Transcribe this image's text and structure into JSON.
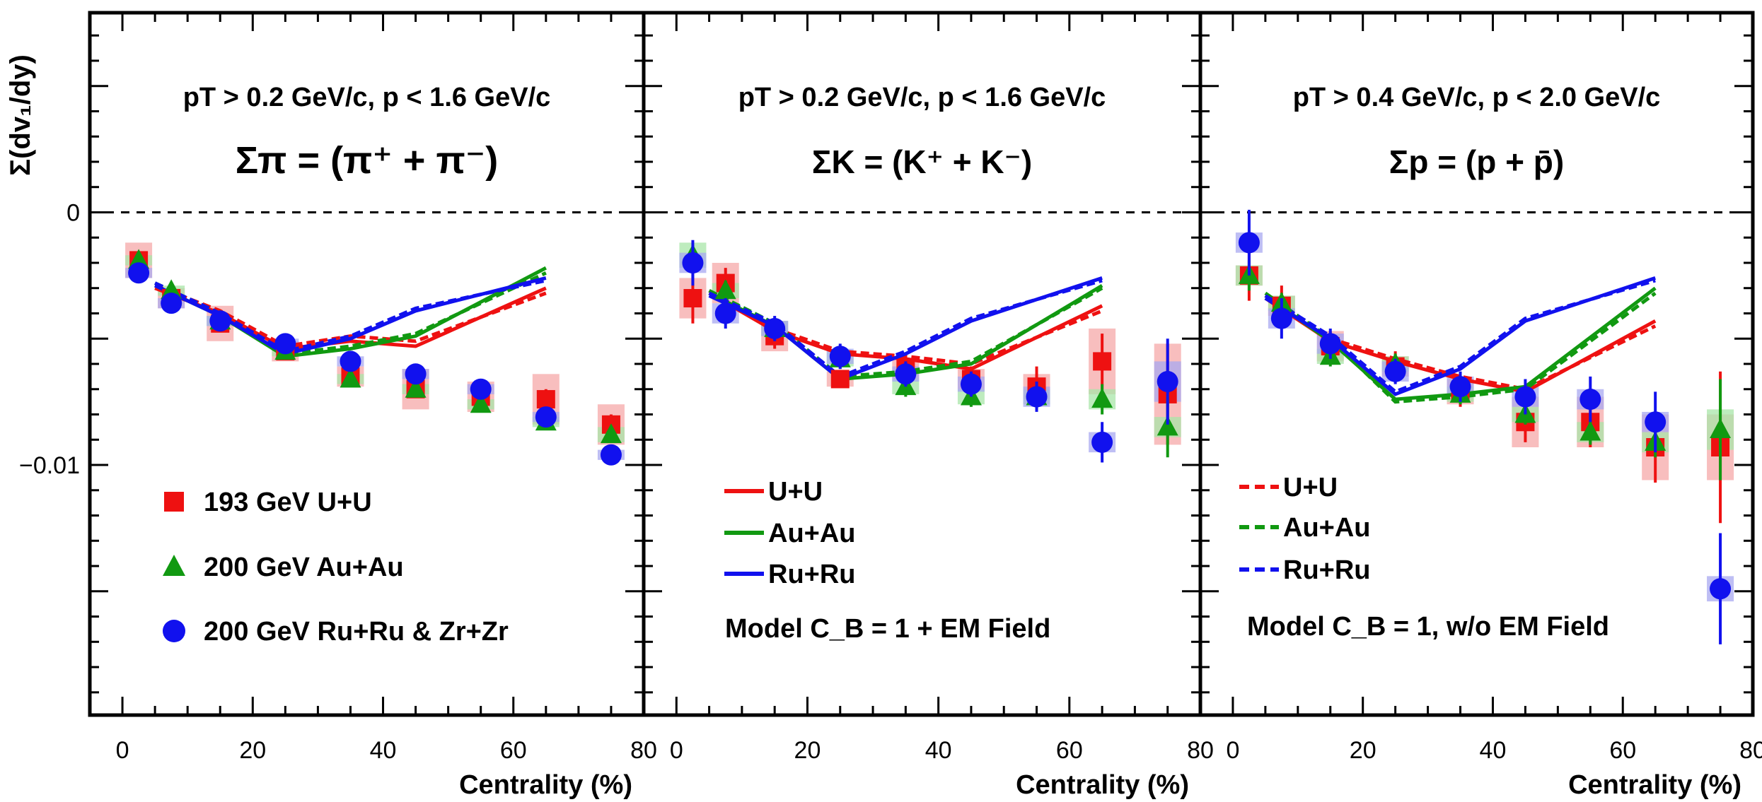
{
  "y_axis_label": "Σ(dv₁/dy)",
  "x_axis_label": "Centrality (%)",
  "colors": {
    "uu": "#ee1111",
    "auau": "#119911",
    "ruru": "#1111ee",
    "uu_band": "#f6a8a8",
    "auau_band": "#a8e6a8",
    "ruru_band": "#a8a8f0"
  },
  "chart_data": [
    {
      "type": "scatter",
      "cut": "pT > 0.2 GeV/c, p < 1.6 GeV/c",
      "species": "Σπ = (π⁺ + π⁻)",
      "xlim": [
        -5,
        80
      ],
      "ylim": [
        -0.0199,
        0.0079
      ],
      "y_ticks": [
        {
          "v": 0,
          "label": "0"
        },
        {
          "v": -0.01,
          "label": "−0.01"
        }
      ],
      "x_ticks": [
        0,
        20,
        40,
        60,
        80
      ],
      "legend": {
        "placement": "bottom-left",
        "items": [
          {
            "label": "193 GeV U+U",
            "marker": "square",
            "color": "#ee1111"
          },
          {
            "label": "200 GeV Au+Au",
            "marker": "triangle",
            "color": "#119911"
          },
          {
            "label": "200 GeV Ru+Ru & Zr+Zr",
            "marker": "circle",
            "color": "#1111ee"
          }
        ]
      },
      "series": [
        {
          "name": "193 GeV U+U",
          "marker": "square",
          "color": "#ee1111",
          "x": [
            2.5,
            7.5,
            15,
            25,
            35,
            45,
            55,
            65,
            75
          ],
          "y": [
            -0.0019,
            -0.0034,
            -0.0044,
            -0.0055,
            -0.0065,
            -0.007,
            -0.0073,
            -0.0074,
            -0.0084
          ],
          "err": [
            0.0003,
            0.0003,
            0.0003,
            0.0003,
            0.0003,
            0.0003,
            0.0003,
            0.0004,
            0.0004
          ],
          "sys": [
            0.0007,
            0.0004,
            0.0007,
            0.0004,
            0.0004,
            0.0008,
            0.0006,
            0.001,
            0.0008
          ]
        },
        {
          "name": "200 GeV Au+Au",
          "marker": "triangle",
          "color": "#119911",
          "x": [
            2.5,
            7.5,
            15,
            25,
            35,
            45,
            55,
            65,
            75
          ],
          "y": [
            -0.0019,
            -0.0031,
            -0.0043,
            -0.0055,
            -0.0066,
            -0.007,
            -0.0076,
            -0.0083,
            -0.0088
          ],
          "err": [
            0.0002,
            0.0002,
            0.0002,
            0.0002,
            0.0002,
            0.0002,
            0.0002,
            0.0002,
            0.0003
          ],
          "sys": [
            0.0002,
            0.0002,
            0.0002,
            0.0002,
            0.0002,
            0.0002,
            0.0002,
            0.0002,
            0.0003
          ]
        },
        {
          "name": "200 GeV Ru+Ru & Zr+Zr",
          "marker": "circle",
          "color": "#1111ee",
          "x": [
            2.5,
            7.5,
            15,
            25,
            35,
            45,
            55,
            65,
            75
          ],
          "y": [
            -0.0024,
            -0.0036,
            -0.0043,
            -0.0052,
            -0.0059,
            -0.0064,
            -0.007,
            -0.0081,
            -0.0096
          ],
          "err": [
            0.0002,
            0.0002,
            0.0002,
            0.0002,
            0.0002,
            0.0002,
            0.0002,
            0.0002,
            0.0002
          ],
          "sys": [
            0.0002,
            0.0002,
            0.0002,
            0.0002,
            0.0002,
            0.0002,
            0.0002,
            0.0002,
            0.0002
          ]
        }
      ],
      "model_lines": [
        {
          "system": "U+U",
          "style": "solid",
          "color": "#ee1111",
          "x": [
            5,
            15,
            25,
            35,
            45,
            65
          ],
          "y": [
            -0.003,
            -0.004,
            -0.0054,
            -0.0051,
            -0.0053,
            -0.003
          ]
        },
        {
          "system": "U+U",
          "style": "dashed",
          "color": "#ee1111",
          "x": [
            5,
            15,
            25,
            35,
            45,
            65
          ],
          "y": [
            -0.0029,
            -0.0039,
            -0.0053,
            -0.0049,
            -0.0051,
            -0.0032
          ]
        },
        {
          "system": "Au+Au",
          "style": "solid",
          "color": "#119911",
          "x": [
            5,
            15,
            25,
            35,
            45,
            65
          ],
          "y": [
            -0.0029,
            -0.0041,
            -0.0057,
            -0.0054,
            -0.0049,
            -0.0022
          ]
        },
        {
          "system": "Au+Au",
          "style": "dashed",
          "color": "#119911",
          "x": [
            5,
            15,
            25,
            35,
            45,
            65
          ],
          "y": [
            -0.0028,
            -0.004,
            -0.0056,
            -0.0053,
            -0.0048,
            -0.0024
          ]
        },
        {
          "system": "Ru+Ru",
          "style": "solid",
          "color": "#1111ee",
          "x": [
            5,
            15,
            25,
            35,
            45,
            65
          ],
          "y": [
            -0.0029,
            -0.0041,
            -0.0056,
            -0.005,
            -0.0039,
            -0.0026
          ]
        },
        {
          "system": "Ru+Ru",
          "style": "dashed",
          "color": "#1111ee",
          "x": [
            5,
            15,
            25,
            35,
            45,
            65
          ],
          "y": [
            -0.0028,
            -0.004,
            -0.0055,
            -0.0049,
            -0.0038,
            -0.0027
          ]
        }
      ]
    },
    {
      "type": "scatter",
      "cut": "pT > 0.2 GeV/c, p < 1.6 GeV/c",
      "species": "ΣK = (K⁺ + K⁻)",
      "xlim": [
        -5,
        80
      ],
      "ylim": [
        -0.0199,
        0.0079
      ],
      "x_ticks": [
        0,
        20,
        40,
        60,
        80
      ],
      "legend": {
        "placement": "bottom-left",
        "items": [
          {
            "label": "U+U",
            "style": "solid",
            "color": "#ee1111"
          },
          {
            "label": "Au+Au",
            "style": "solid",
            "color": "#119911"
          },
          {
            "label": "Ru+Ru",
            "style": "solid",
            "color": "#1111ee"
          }
        ],
        "note": "Model C_B = 1 + EM Field"
      },
      "series": [
        {
          "name": "193 GeV U+U",
          "marker": "square",
          "color": "#ee1111",
          "x": [
            2.5,
            7.5,
            15,
            25,
            35,
            45,
            55,
            65,
            75
          ],
          "y": [
            -0.0034,
            -0.0028,
            -0.0049,
            -0.0066,
            -0.0062,
            -0.0066,
            -0.0069,
            -0.0059,
            -0.0072
          ],
          "err": [
            0.001,
            0.0006,
            0.0005,
            0.0003,
            0.0005,
            0.0005,
            0.0008,
            0.0011,
            0.002
          ],
          "sys": [
            0.0008,
            0.0008,
            0.0006,
            0.0003,
            0.0004,
            0.0004,
            0.0005,
            0.0013,
            0.002
          ]
        },
        {
          "name": "200 GeV Au+Au",
          "marker": "triangle",
          "color": "#119911",
          "x": [
            2.5,
            7.5,
            15,
            25,
            35,
            45,
            55,
            65,
            75
          ],
          "y": [
            -0.0017,
            -0.0031,
            -0.0046,
            -0.0058,
            -0.0069,
            -0.0073,
            -0.0073,
            -0.0074,
            -0.0085
          ],
          "err": [
            0.0004,
            0.0004,
            0.0004,
            0.0004,
            0.0004,
            0.0004,
            0.0005,
            0.0006,
            0.0012
          ],
          "sys": [
            0.0005,
            0.0003,
            0.0003,
            0.0003,
            0.0003,
            0.0003,
            0.0003,
            0.0004,
            0.0004
          ]
        },
        {
          "name": "200 GeV Ru+Ru & Zr+Zr",
          "marker": "circle",
          "color": "#1111ee",
          "x": [
            2.5,
            7.5,
            15,
            25,
            35,
            45,
            55,
            65,
            75
          ],
          "y": [
            -0.002,
            -0.004,
            -0.0046,
            -0.0057,
            -0.0064,
            -0.0068,
            -0.0073,
            -0.0091,
            -0.0067
          ],
          "err": [
            0.0009,
            0.0006,
            0.0005,
            0.0005,
            0.0005,
            0.0005,
            0.0006,
            0.0008,
            0.0017
          ],
          "sys": [
            0.0004,
            0.0004,
            0.0003,
            0.0003,
            0.0003,
            0.0003,
            0.0004,
            0.0004,
            0.0008
          ]
        }
      ],
      "model_lines": [
        {
          "system": "U+U",
          "style": "solid",
          "color": "#ee1111",
          "x": [
            5,
            15,
            25,
            35,
            45,
            65
          ],
          "y": [
            -0.0032,
            -0.0047,
            -0.0056,
            -0.0058,
            -0.0062,
            -0.0037
          ]
        },
        {
          "system": "U+U",
          "style": "dashed",
          "color": "#ee1111",
          "x": [
            5,
            15,
            25,
            35,
            45,
            65
          ],
          "y": [
            -0.0031,
            -0.0046,
            -0.0055,
            -0.0057,
            -0.006,
            -0.0039
          ]
        },
        {
          "system": "Au+Au",
          "style": "solid",
          "color": "#119911",
          "x": [
            5,
            15,
            25,
            35,
            45,
            65
          ],
          "y": [
            -0.0032,
            -0.0045,
            -0.0066,
            -0.0064,
            -0.006,
            -0.0029
          ]
        },
        {
          "system": "Au+Au",
          "style": "dashed",
          "color": "#119911",
          "x": [
            5,
            15,
            25,
            35,
            45,
            65
          ],
          "y": [
            -0.0031,
            -0.0044,
            -0.0065,
            -0.0063,
            -0.0059,
            -0.003
          ]
        },
        {
          "system": "Ru+Ru",
          "style": "solid",
          "color": "#1111ee",
          "x": [
            5,
            15,
            25,
            35,
            45,
            65
          ],
          "y": [
            -0.0033,
            -0.0045,
            -0.0066,
            -0.0056,
            -0.0043,
            -0.0026
          ]
        },
        {
          "system": "Ru+Ru",
          "style": "dashed",
          "color": "#1111ee",
          "x": [
            5,
            15,
            25,
            35,
            45,
            65
          ],
          "y": [
            -0.0032,
            -0.0044,
            -0.0065,
            -0.0055,
            -0.0042,
            -0.0027
          ]
        }
      ]
    },
    {
      "type": "scatter",
      "cut": "pT > 0.4 GeV/c, p < 2.0 GeV/c",
      "species": "Σp = (p + p̄)",
      "xlim": [
        -5,
        80
      ],
      "ylim": [
        -0.0199,
        0.0079
      ],
      "x_ticks": [
        0,
        20,
        40,
        60,
        80
      ],
      "legend": {
        "placement": "bottom-left",
        "items": [
          {
            "label": "U+U",
            "style": "dashed",
            "color": "#ee1111"
          },
          {
            "label": "Au+Au",
            "style": "dashed",
            "color": "#119911"
          },
          {
            "label": "Ru+Ru",
            "style": "dashed",
            "color": "#1111ee"
          }
        ],
        "note": "Model C_B = 1, w/o EM Field"
      },
      "series": [
        {
          "name": "193 GeV U+U",
          "marker": "square",
          "color": "#ee1111",
          "x": [
            2.5,
            7.5,
            15,
            25,
            35,
            45,
            55,
            65,
            75
          ],
          "y": [
            -0.0025,
            -0.0037,
            -0.0053,
            -0.0061,
            -0.0071,
            -0.0083,
            -0.0083,
            -0.0093,
            -0.0093
          ],
          "err": [
            0.001,
            0.0008,
            0.0006,
            0.0006,
            0.0006,
            0.0008,
            0.001,
            0.0014,
            0.003
          ],
          "sys": [
            0.0004,
            0.0004,
            0.0006,
            0.0004,
            0.0005,
            0.001,
            0.001,
            0.0013,
            0.0013
          ]
        },
        {
          "name": "200 GeV Au+Au",
          "marker": "triangle",
          "color": "#119911",
          "x": [
            2.5,
            7.5,
            15,
            25,
            35,
            45,
            55,
            65,
            75
          ],
          "y": [
            -0.0025,
            -0.0036,
            -0.0057,
            -0.006,
            -0.0072,
            -0.008,
            -0.0087,
            -0.0091,
            -0.0086
          ],
          "err": [
            0.0006,
            0.0004,
            0.0004,
            0.0004,
            0.0004,
            0.0004,
            0.0005,
            0.0006,
            0.002
          ],
          "sys": [
            0.0004,
            0.0003,
            0.0003,
            0.0003,
            0.0003,
            0.0003,
            0.0004,
            0.0004,
            0.0008
          ]
        },
        {
          "name": "200 GeV Ru+Ru & Zr+Zr",
          "marker": "circle",
          "color": "#1111ee",
          "x": [
            2.5,
            7.5,
            15,
            25,
            35,
            45,
            55,
            65,
            75
          ],
          "y": [
            -0.0012,
            -0.0042,
            -0.0052,
            -0.0063,
            -0.0069,
            -0.0073,
            -0.0074,
            -0.0083,
            -0.0149
          ],
          "err": [
            0.0013,
            0.0008,
            0.0006,
            0.0005,
            0.0006,
            0.0007,
            0.0009,
            0.0012,
            0.0022
          ],
          "sys": [
            0.0004,
            0.0004,
            0.0004,
            0.0004,
            0.0004,
            0.0004,
            0.0004,
            0.0004,
            0.0005
          ]
        }
      ],
      "model_lines": [
        {
          "system": "U+U",
          "style": "solid",
          "color": "#ee1111",
          "x": [
            5,
            15,
            25,
            35,
            45,
            65
          ],
          "y": [
            -0.0034,
            -0.0051,
            -0.0059,
            -0.0066,
            -0.0071,
            -0.0043
          ]
        },
        {
          "system": "U+U",
          "style": "dashed",
          "color": "#ee1111",
          "x": [
            5,
            15,
            25,
            35,
            45,
            65
          ],
          "y": [
            -0.0033,
            -0.005,
            -0.0058,
            -0.0065,
            -0.007,
            -0.0045
          ]
        },
        {
          "system": "Au+Au",
          "style": "solid",
          "color": "#119911",
          "x": [
            5,
            15,
            25,
            35,
            45,
            65
          ],
          "y": [
            -0.0033,
            -0.0051,
            -0.0074,
            -0.0072,
            -0.0069,
            -0.003
          ]
        },
        {
          "system": "Au+Au",
          "style": "dashed",
          "color": "#119911",
          "x": [
            5,
            15,
            25,
            35,
            45,
            65
          ],
          "y": [
            -0.0032,
            -0.005,
            -0.0075,
            -0.0073,
            -0.007,
            -0.0032
          ]
        },
        {
          "system": "Ru+Ru",
          "style": "solid",
          "color": "#1111ee",
          "x": [
            5,
            15,
            25,
            35,
            45,
            65
          ],
          "y": [
            -0.0034,
            -0.005,
            -0.0072,
            -0.0062,
            -0.0043,
            -0.0026
          ]
        },
        {
          "system": "Ru+Ru",
          "style": "dashed",
          "color": "#1111ee",
          "x": [
            5,
            15,
            25,
            35,
            45,
            65
          ],
          "y": [
            -0.0033,
            -0.0049,
            -0.0071,
            -0.0061,
            -0.0042,
            -0.0027
          ]
        }
      ]
    }
  ]
}
